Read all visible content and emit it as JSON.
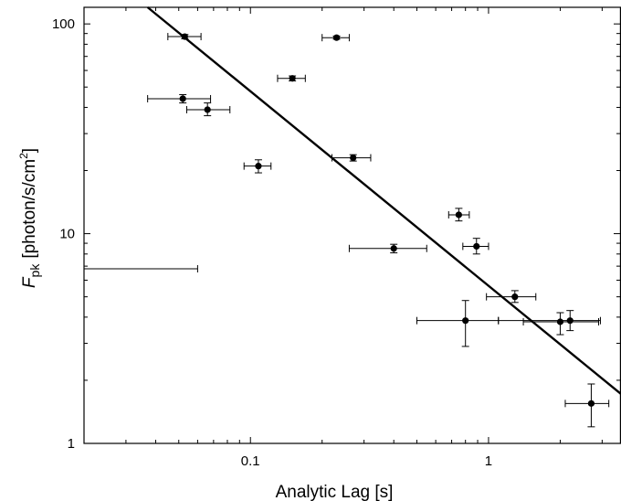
{
  "chart_data": {
    "type": "scatter",
    "xscale": "log",
    "yscale": "log",
    "xlim": [
      0.02,
      3.6
    ],
    "ylim": [
      1,
      120
    ],
    "xlabel": "Analytic Lag [s]",
    "ylabel": {
      "variable": "F",
      "subscript": "pk",
      "units_prefix": "[photon/s/cm",
      "units_superscript": "2",
      "units_suffix": "]"
    },
    "x_ticks": [
      {
        "value": 0.1,
        "label": "0.1"
      },
      {
        "value": 1,
        "label": "1"
      }
    ],
    "y_ticks": [
      {
        "value": 1,
        "label": "1"
      },
      {
        "value": 10,
        "label": "10"
      },
      {
        "value": 100,
        "label": "100"
      }
    ],
    "grid": false,
    "points": [
      {
        "x": 0.053,
        "y": 87,
        "xerr": [
          0.045,
          0.062
        ],
        "yerr": [
          85,
          89
        ]
      },
      {
        "x": 0.23,
        "y": 86,
        "xerr": [
          0.2,
          0.26
        ],
        "yerr": [
          84.5,
          87.5
        ]
      },
      {
        "x": 0.15,
        "y": 55,
        "xerr": [
          0.13,
          0.17
        ],
        "yerr": [
          53.5,
          56.5
        ]
      },
      {
        "x": 0.052,
        "y": 44,
        "xerr": [
          0.037,
          0.068
        ],
        "yerr": [
          42,
          46
        ]
      },
      {
        "x": 0.066,
        "y": 39,
        "xerr": [
          0.054,
          0.082
        ],
        "yerr": [
          36.5,
          42
        ]
      },
      {
        "x": 0.108,
        "y": 21,
        "xerr": [
          0.094,
          0.122
        ],
        "yerr": [
          19.5,
          22.5
        ]
      },
      {
        "x": 0.27,
        "y": 23,
        "xerr": [
          0.22,
          0.32
        ],
        "yerr": [
          22.2,
          23.8
        ]
      },
      {
        "x": 0.75,
        "y": 12.3,
        "xerr": [
          0.68,
          0.83
        ],
        "yerr": [
          11.5,
          13.2
        ]
      },
      {
        "x": 0.89,
        "y": 8.7,
        "xerr": [
          0.78,
          1.0
        ],
        "yerr": [
          8.0,
          9.5
        ]
      },
      {
        "x": 0.4,
        "y": 8.5,
        "xerr": [
          0.26,
          0.55
        ],
        "yerr": [
          8.1,
          8.9
        ]
      },
      {
        "x": 1.29,
        "y": 5.0,
        "xerr": [
          0.98,
          1.58
        ],
        "yerr": [
          4.7,
          5.35
        ]
      },
      {
        "x": 0.8,
        "y": 3.85,
        "xerr": [
          0.5,
          1.1
        ],
        "yerr": [
          2.9,
          4.8
        ]
      },
      {
        "x": 2.0,
        "y": 3.8,
        "xerr": [
          1.4,
          2.9
        ],
        "yerr": [
          3.3,
          4.2
        ]
      },
      {
        "x": 2.2,
        "y": 3.85,
        "xerr": [
          1.1,
          2.95
        ],
        "yerr": [
          3.45,
          4.3
        ]
      },
      {
        "x": 2.7,
        "y": 1.55,
        "xerr": [
          2.1,
          3.2
        ],
        "yerr": [
          1.2,
          1.92
        ]
      }
    ],
    "extra_error_bars": [
      {
        "y": 6.8,
        "xerr": [
          0.02,
          0.06
        ]
      }
    ],
    "fit_line": {
      "x": [
        0.037,
        3.6
      ],
      "y": [
        120,
        1.72
      ]
    },
    "colors": {
      "marker": "#000000",
      "error_bar": "#000000",
      "fit_line": "#000000",
      "frame": "#000000"
    }
  }
}
